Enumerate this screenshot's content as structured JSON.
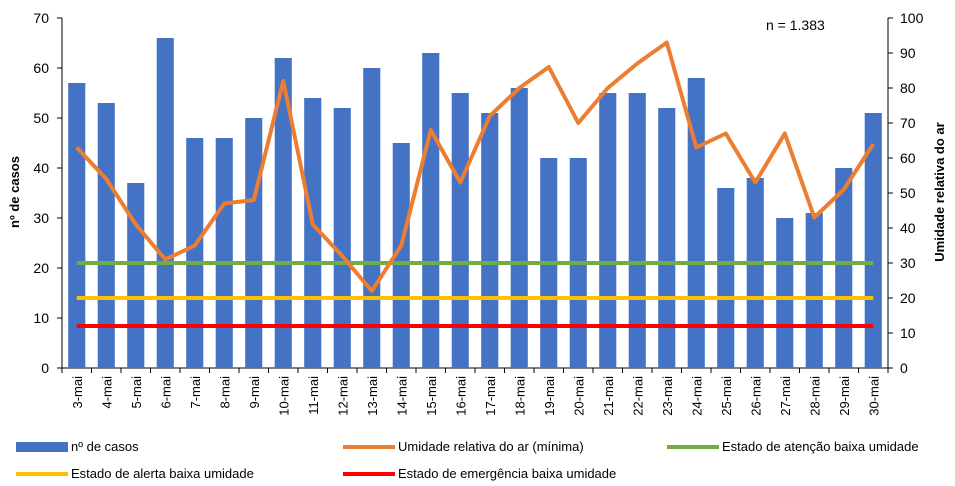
{
  "chart_data": {
    "type": "bar",
    "categories": [
      "3-mai",
      "4-mai",
      "5-mai",
      "6-mai",
      "7-mai",
      "8-mai",
      "9-mai",
      "10-mai",
      "11-mai",
      "12-mai",
      "13-mai",
      "14-mai",
      "15-mai",
      "16-mai",
      "17-mai",
      "18-mai",
      "19-mai",
      "20-mai",
      "21-mai",
      "22-mai",
      "23-mai",
      "24-mai",
      "25-mai",
      "26-mai",
      "27-mai",
      "28-mai",
      "29-mai",
      "30-mai"
    ],
    "annotation": "n = 1.383",
    "ylabel": "nº de casos",
    "y2label": "Umidade relativa do ar",
    "ylim": [
      0,
      70
    ],
    "yticks": [
      0,
      10,
      20,
      30,
      40,
      50,
      60,
      70
    ],
    "y2lim": [
      0,
      100
    ],
    "y2ticks": [
      0,
      10,
      20,
      30,
      40,
      50,
      60,
      70,
      80,
      90,
      100
    ],
    "series": [
      {
        "name": "nº de casos",
        "type": "bar",
        "axis": "left",
        "color": "#4472C4",
        "values": [
          57,
          53,
          37,
          66,
          46,
          46,
          50,
          62,
          54,
          52,
          60,
          45,
          63,
          55,
          51,
          56,
          42,
          42,
          55,
          55,
          52,
          58,
          36,
          38,
          30,
          31,
          40,
          51
        ]
      },
      {
        "name": "Umidade relativa do ar (mínima)",
        "type": "line",
        "axis": "right",
        "color": "#ED7D31",
        "values": [
          63,
          54,
          41,
          31,
          35,
          47,
          48,
          82,
          41,
          32,
          22,
          35,
          68,
          53,
          72,
          80,
          86,
          70,
          80,
          87,
          93,
          63,
          67,
          53,
          67,
          43,
          51,
          64
        ]
      },
      {
        "name": "Estado de atenção baixa umidade",
        "type": "hline",
        "axis": "right",
        "color": "#70AD47",
        "value": 30
      },
      {
        "name": "Estado de alerta baixa umidade",
        "type": "hline",
        "axis": "right",
        "color": "#FFC000",
        "value": 20
      },
      {
        "name": "Estado de emergência baixa umidade",
        "type": "hline",
        "axis": "right",
        "color": "#FF0000",
        "value": 12
      }
    ],
    "grid": false,
    "legend_position": "bottom"
  }
}
